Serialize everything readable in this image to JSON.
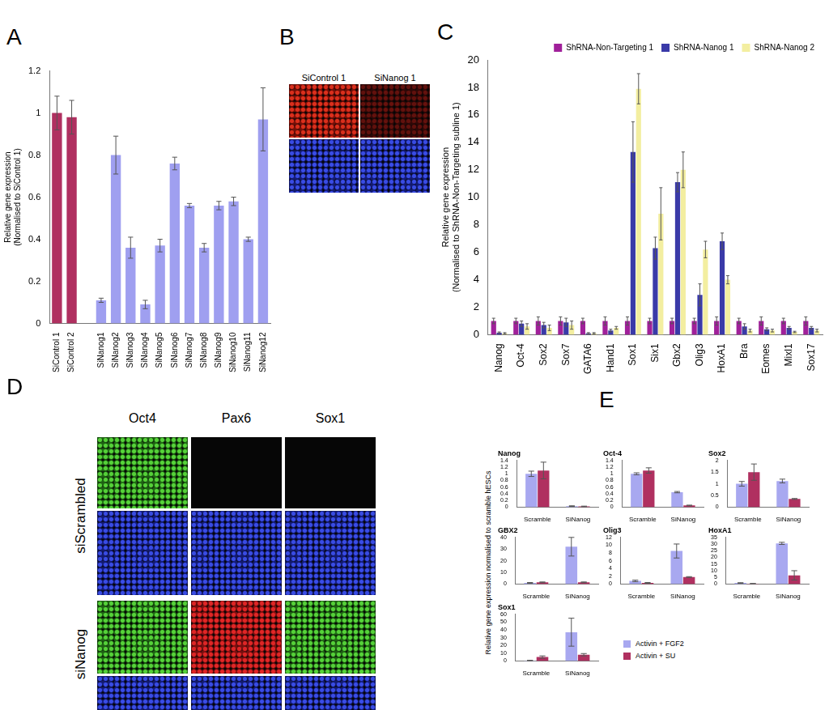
{
  "chart_data": [
    {
      "panel": "A",
      "type": "bar",
      "ylabel": [
        "Relative gene expression",
        "(Normalised to SiControl 1)"
      ],
      "categories": [
        "SiControl 1",
        "SiControl 2",
        null,
        "SiNanog1",
        "SiNanog2",
        "SiNanog3",
        "SiNanog4",
        "SiNanog5",
        "SiNanog6",
        "SiNanog7",
        "SiNanog8",
        "SiNanog9",
        "SiNanog10",
        "SiNanog11",
        "SiNanog12"
      ],
      "values": [
        1.0,
        0.98,
        null,
        0.11,
        0.8,
        0.36,
        0.09,
        0.37,
        0.76,
        0.56,
        0.36,
        0.56,
        0.58,
        0.4,
        0.97
      ],
      "errors": [
        0.08,
        0.08,
        null,
        0.01,
        0.09,
        0.05,
        0.02,
        0.03,
        0.03,
        0.01,
        0.02,
        0.02,
        0.02,
        0.01,
        0.15
      ],
      "colors": [
        "#b03060",
        "#b03060",
        null,
        "#9f9ff0",
        "#9f9ff0",
        "#9f9ff0",
        "#9f9ff0",
        "#9f9ff0",
        "#9f9ff0",
        "#9f9ff0",
        "#9f9ff0",
        "#9f9ff0",
        "#9f9ff0",
        "#9f9ff0",
        "#9f9ff0"
      ],
      "ylim": [
        0,
        1.2
      ],
      "yticks": [
        0,
        0.2,
        0.4,
        0.6,
        0.8,
        1,
        1.2
      ],
      "grid": false
    },
    {
      "panel": "C",
      "type": "bar",
      "ylabel": [
        "Relative gene expression",
        "(Normalised to ShRNA-Non-Targeting subline 1)"
      ],
      "categories": [
        "Nanog",
        "Oct-4",
        "Sox2",
        "Sox7",
        "GATA6",
        "Hand1",
        "Sox1",
        "Six1",
        "Gbx2",
        "Olig3",
        "HoxA1",
        "Bra",
        "Eomes",
        "Mixl1",
        "Sox17"
      ],
      "series": [
        {
          "name": "ShRNA-Non-Targeting 1",
          "color": "#a0209a",
          "values": [
            1,
            1,
            1,
            1,
            1,
            1,
            1,
            1,
            1,
            1,
            1,
            1,
            1,
            1,
            1
          ],
          "errors": [
            0.2,
            0.2,
            0.3,
            0.3,
            0.2,
            0.3,
            0.3,
            0.2,
            0.2,
            0.2,
            0.3,
            0.2,
            0.3,
            0.2,
            0.3
          ]
        },
        {
          "name": "ShRNA-Nanog 1",
          "color": "#3a3aa8",
          "values": [
            0.15,
            0.8,
            0.7,
            0.9,
            0.1,
            0.3,
            13.3,
            6.3,
            11.1,
            2.9,
            6.8,
            0.6,
            0.4,
            0.5,
            0.5
          ],
          "errors": [
            0.05,
            0.2,
            0.2,
            0.3,
            0.05,
            0.1,
            2.2,
            0.8,
            0.7,
            0.8,
            0.6,
            0.2,
            0.1,
            0.1,
            0.1
          ]
        },
        {
          "name": "ShRNA-Nanog 2",
          "color": "#f3eea0",
          "values": [
            0.1,
            0.6,
            0.5,
            0.7,
            0.1,
            0.5,
            17.9,
            8.8,
            12.0,
            6.2,
            4.0,
            0.3,
            0.3,
            0.2,
            0.3
          ],
          "errors": [
            0.05,
            0.2,
            0.2,
            0.3,
            0.05,
            0.1,
            1.1,
            1.9,
            1.3,
            0.6,
            0.3,
            0.1,
            0.1,
            0.05,
            0.1
          ]
        }
      ],
      "ylim": [
        0,
        20
      ],
      "yticks": [
        0,
        2,
        4,
        6,
        8,
        10,
        12,
        14,
        16,
        18,
        20
      ],
      "grid": false,
      "legend": "upper right"
    },
    {
      "panel": "E",
      "type": "bar",
      "ylabel": "Relative gene expression normalised to scramble hESCs",
      "categories": [
        "Scramble",
        "SiNanog"
      ],
      "series": [
        {
          "name": "Activin + FGF2",
          "color": "#a8a8f0"
        },
        {
          "name": "Activin + SU",
          "color": "#b03060"
        }
      ],
      "legend": "lower right",
      "grid": false,
      "subplots": [
        {
          "title": "Nanog",
          "ylim": [
            0,
            1.4
          ],
          "yticks": [
            0,
            0.2,
            0.4,
            0.6,
            0.8,
            1,
            1.2,
            1.4
          ],
          "values": [
            [
              1.0,
              0.03
            ],
            [
              1.1,
              0.02
            ]
          ],
          "errors": [
            [
              0.08,
              0.01
            ],
            [
              0.25,
              0.01
            ]
          ]
        },
        {
          "title": "Oct-4",
          "ylim": [
            0,
            1.4
          ],
          "yticks": [
            0,
            0.2,
            0.4,
            0.6,
            0.8,
            1,
            1.2,
            1.4
          ],
          "values": [
            [
              1.0,
              0.45
            ],
            [
              1.1,
              0.05
            ]
          ],
          "errors": [
            [
              0.03,
              0.02
            ],
            [
              0.08,
              0.01
            ]
          ]
        },
        {
          "title": "Sox2",
          "ylim": [
            0,
            2
          ],
          "yticks": [
            0,
            0.5,
            1,
            1.5,
            2
          ],
          "values": [
            [
              1.0,
              1.12
            ],
            [
              1.5,
              0.35
            ]
          ],
          "errors": [
            [
              0.1,
              0.08
            ],
            [
              0.35,
              0.02
            ]
          ]
        },
        {
          "title": "GBX2",
          "ylim": [
            0,
            40
          ],
          "yticks": [
            0,
            10,
            20,
            30,
            40
          ],
          "values": [
            [
              1,
              32
            ],
            [
              1.5,
              1.5
            ]
          ],
          "errors": [
            [
              0.3,
              8
            ],
            [
              0.3,
              0.3
            ]
          ]
        },
        {
          "title": "Olig3",
          "ylim": [
            0,
            12
          ],
          "yticks": [
            0,
            2,
            4,
            6,
            8,
            10,
            12
          ],
          "values": [
            [
              0.8,
              8.5
            ],
            [
              0.3,
              1.8
            ]
          ],
          "errors": [
            [
              0.2,
              1.8
            ],
            [
              0.1,
              0.1
            ]
          ]
        },
        {
          "title": "HoxA1",
          "ylim": [
            0,
            35
          ],
          "yticks": [
            0,
            5,
            10,
            15,
            20,
            25,
            30,
            35
          ],
          "values": [
            [
              0.8,
              30.5
            ],
            [
              0.3,
              6.5
            ]
          ],
          "errors": [
            [
              0.2,
              0.8
            ],
            [
              0.1,
              3.5
            ]
          ]
        },
        {
          "title": "Sox1",
          "ylim": [
            0,
            60
          ],
          "yticks": [
            0,
            10,
            20,
            30,
            40,
            50,
            60
          ],
          "values": [
            [
              0.5,
              37
            ],
            [
              5,
              8
            ]
          ],
          "errors": [
            [
              0.3,
              18
            ],
            [
              1.5,
              1.5
            ]
          ]
        }
      ]
    }
  ],
  "images": [
    {
      "panel": "B",
      "columns": [
        "SiControl 1",
        "SiNanog 1"
      ]
    },
    {
      "panel": "D",
      "columns": [
        "Oct4",
        "Pax6",
        "Sox1"
      ],
      "rows": [
        "siScrambled",
        "siNanog"
      ]
    }
  ]
}
